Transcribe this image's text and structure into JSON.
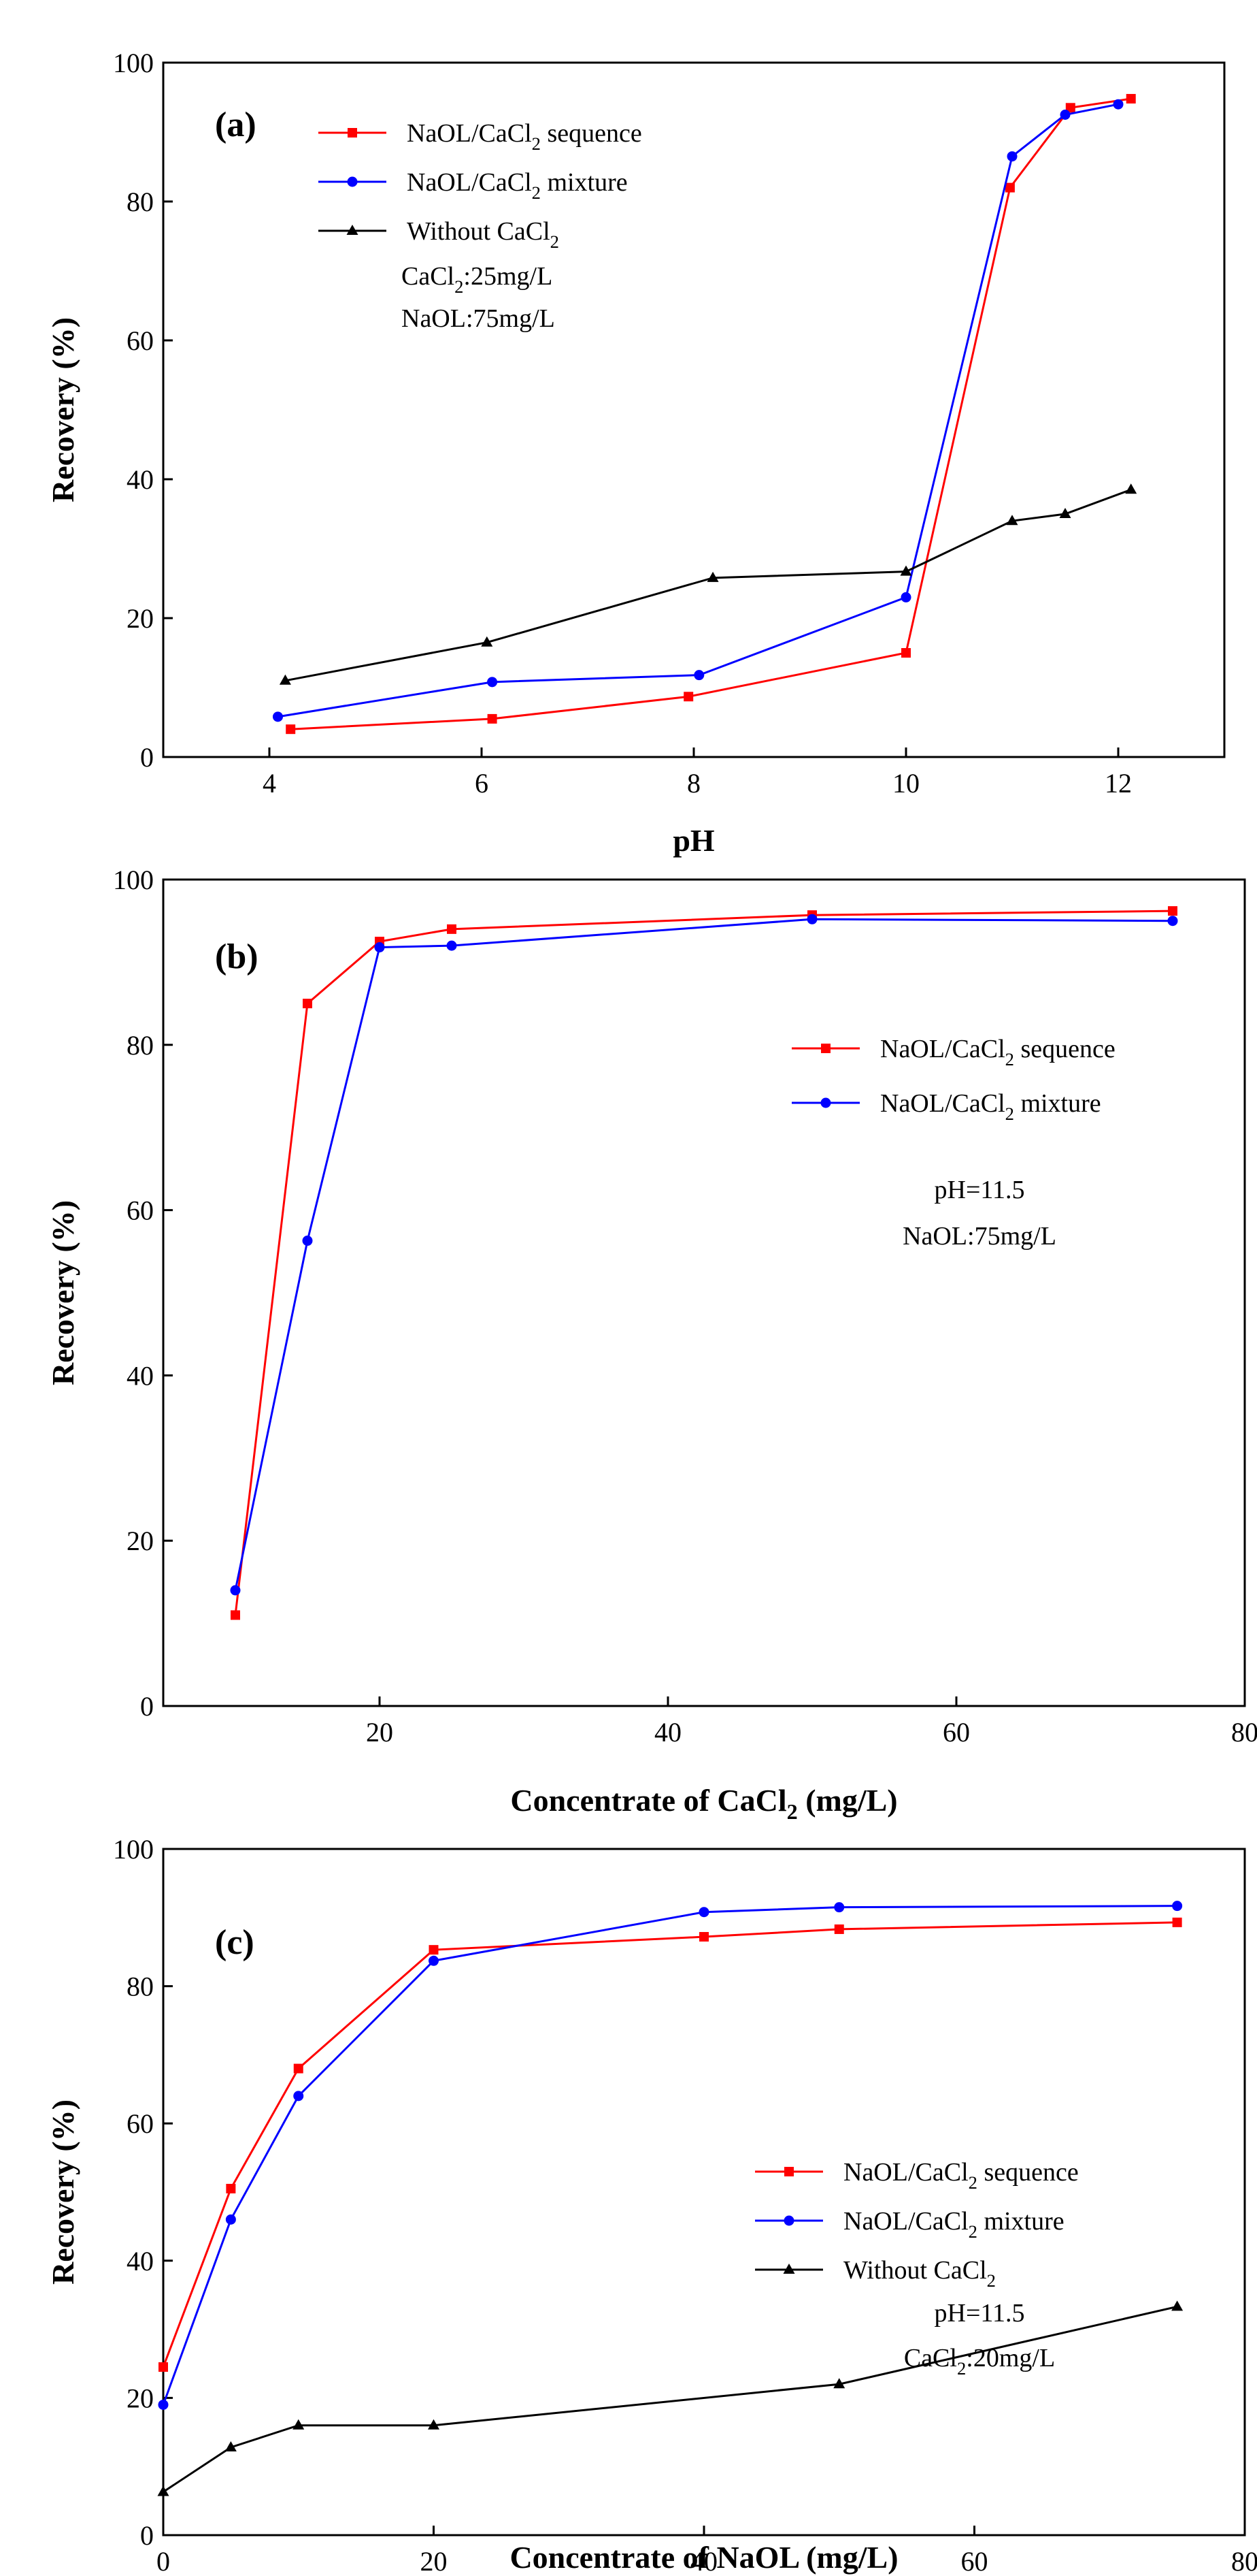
{
  "chart_data": [
    {
      "type": "line",
      "panel_label": "(a)",
      "xlabel": "pH",
      "ylabel": "Recovery (%)",
      "xlim": [
        3,
        13
      ],
      "ylim": [
        0,
        100
      ],
      "xticks": [
        4,
        6,
        8,
        10,
        12
      ],
      "yticks": [
        0,
        20,
        40,
        60,
        80,
        100
      ],
      "legend_position": "top-left",
      "series": [
        {
          "name": "NaOL/CaCl2 sequence",
          "name_parts": [
            "NaOL/CaCl",
            "2",
            " sequence"
          ],
          "color": "#ff0000",
          "marker": "square",
          "x": [
            4.2,
            6.1,
            7.95,
            10.0,
            10.98,
            11.55,
            12.12
          ],
          "y": [
            4,
            5.5,
            8.7,
            15,
            82,
            93.5,
            94.8
          ]
        },
        {
          "name": "NaOL/CaCl2 mixture",
          "name_parts": [
            "NaOL/CaCl",
            "2",
            " mixture"
          ],
          "color": "#0000ff",
          "marker": "circle",
          "x": [
            4.08,
            6.1,
            8.05,
            10.0,
            11.0,
            11.5,
            12.0
          ],
          "y": [
            5.8,
            10.8,
            11.8,
            23,
            86.5,
            92.5,
            94
          ],
          "z": 0
        },
        {
          "name": "Without CaCl2",
          "name_parts": [
            "Without CaCl",
            "2",
            ""
          ],
          "color": "#000000",
          "marker": "triangle",
          "x": [
            4.15,
            6.05,
            8.18,
            10.0,
            11.0,
            11.5,
            12.12
          ],
          "y": [
            11,
            16.5,
            25.8,
            26.7,
            34,
            35,
            38.5
          ]
        }
      ],
      "annotations": [
        [
          "CaCl",
          "2",
          ":25mg/L"
        ],
        [
          "NaOL:75mg/L",
          "",
          ""
        ]
      ]
    },
    {
      "type": "line",
      "panel_label": "(b)",
      "xlabel_parts": [
        "Concentrate of CaCl",
        "2",
        " (mg/L)"
      ],
      "xlabel": "Concentrate of CaCl2 (mg/L)",
      "ylabel": "Recovery (%)",
      "xlim": [
        5,
        80
      ],
      "ylim": [
        0,
        100
      ],
      "xticks": [
        20,
        40,
        60,
        80
      ],
      "yticks": [
        0,
        20,
        40,
        60,
        80,
        100
      ],
      "legend_position": "right",
      "series": [
        {
          "name": "NaOL/CaCl2 sequence",
          "name_parts": [
            "NaOL/CaCl",
            "2",
            " sequence"
          ],
          "color": "#ff0000",
          "marker": "square",
          "x": [
            10,
            15,
            20,
            25,
            50,
            75
          ],
          "y": [
            11,
            85,
            92.5,
            94,
            95.7,
            96.2
          ]
        },
        {
          "name": "NaOL/CaCl2 mixture",
          "name_parts": [
            "NaOL/CaCl",
            "2",
            " mixture"
          ],
          "color": "#0000ff",
          "marker": "circle",
          "x": [
            10,
            15,
            20,
            25,
            50,
            75
          ],
          "y": [
            14,
            56.3,
            91.8,
            92,
            95.2,
            95
          ]
        }
      ],
      "annotations": [
        [
          "pH=11.5",
          "",
          ""
        ],
        [
          "NaOL:75mg/L",
          "",
          ""
        ]
      ]
    },
    {
      "type": "line",
      "panel_label": "(c)",
      "xlabel": "Concentrate of NaOL (mg/L)",
      "ylabel": "Recovery (%)",
      "xlim": [
        0,
        80
      ],
      "ylim": [
        0,
        100
      ],
      "xticks": [
        0,
        20,
        40,
        60,
        80
      ],
      "yticks": [
        0,
        20,
        40,
        60,
        80,
        100
      ],
      "legend_position": "right",
      "series": [
        {
          "name": "NaOL/CaCl2 sequence",
          "name_parts": [
            "NaOL/CaCl",
            "2",
            " sequence"
          ],
          "color": "#ff0000",
          "marker": "square",
          "x": [
            0,
            5,
            10,
            20,
            40,
            50,
            75
          ],
          "y": [
            24.5,
            50.5,
            68,
            85.3,
            87.2,
            88.3,
            89.3
          ]
        },
        {
          "name": "NaOL/CaCl2 mixture",
          "name_parts": [
            "NaOL/CaCl",
            "2",
            " mixture"
          ],
          "color": "#0000ff",
          "marker": "circle",
          "x": [
            0,
            5,
            10,
            20,
            40,
            50,
            75
          ],
          "y": [
            19,
            46,
            64,
            83.7,
            90.8,
            91.5,
            91.7
          ]
        },
        {
          "name": "Without CaCl2",
          "name_parts": [
            "Without CaCl",
            "2",
            ""
          ],
          "color": "#000000",
          "marker": "triangle",
          "x": [
            0,
            5,
            10,
            20,
            50,
            75
          ],
          "y": [
            6.3,
            12.8,
            16,
            16,
            22,
            33.3
          ]
        }
      ],
      "annotations": [
        [
          "pH=11.5",
          "",
          ""
        ],
        [
          "CaCl",
          "2",
          ":20mg/L"
        ]
      ]
    }
  ]
}
